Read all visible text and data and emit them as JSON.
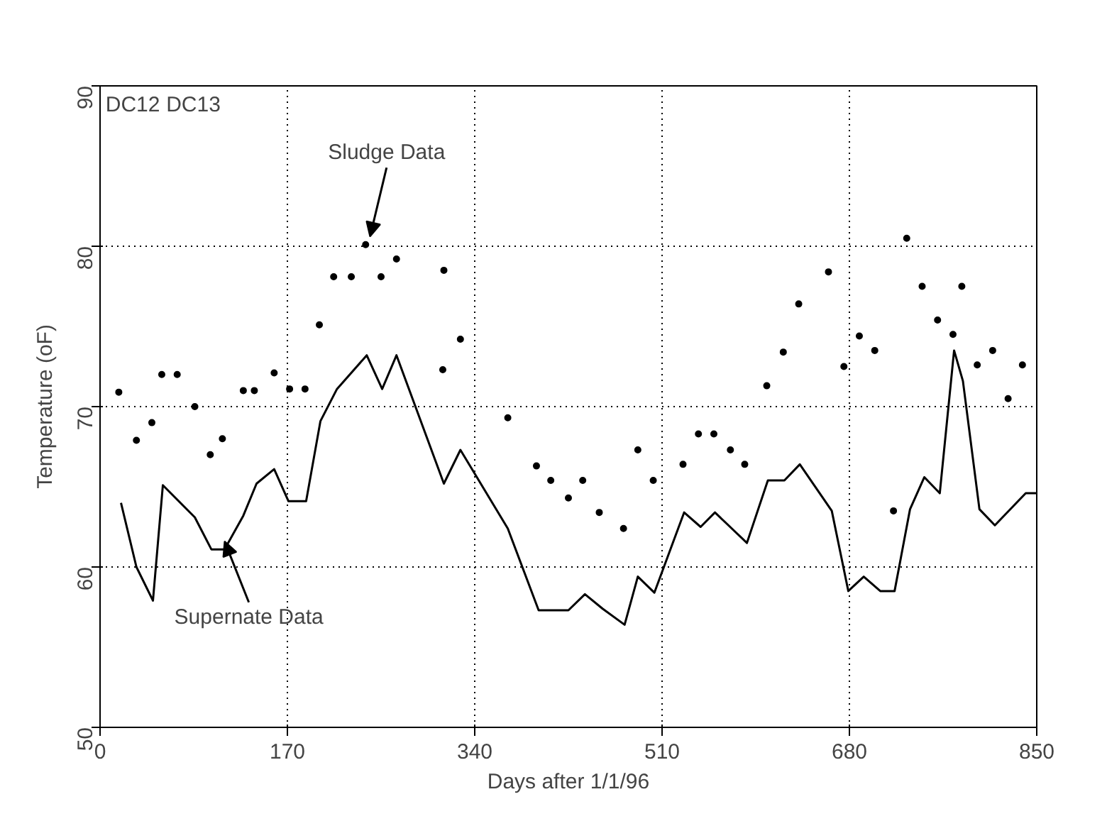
{
  "chart_data": {
    "type": "line",
    "xlabel": "Days after 1/1/96",
    "ylabel": "Temperature (oF)",
    "xlim": [
      0,
      850
    ],
    "ylim": [
      50,
      90
    ],
    "xticks": [
      0,
      170,
      340,
      510,
      680,
      850
    ],
    "yticks": [
      50,
      60,
      70,
      80,
      90
    ],
    "grid": true,
    "series": [
      {
        "type": "scatter",
        "marker": "circle",
        "color": "#000000",
        "x": [
          17,
          33,
          47,
          56,
          70,
          86,
          100,
          111,
          130,
          140,
          158,
          172,
          186,
          199,
          212,
          228,
          241,
          255,
          269,
          311,
          312,
          327,
          370,
          396,
          409,
          425,
          438,
          453,
          475,
          488,
          502,
          529,
          543,
          557,
          572,
          585,
          605,
          620,
          634,
          661,
          675,
          689,
          703,
          720,
          732,
          746,
          760,
          774,
          782,
          796,
          810,
          824,
          837
        ],
        "values": [
          70.9,
          67.9,
          69.0,
          72.0,
          72.0,
          70.0,
          67.0,
          68.0,
          71.0,
          71.0,
          72.1,
          71.1,
          71.1,
          75.1,
          78.1,
          78.1,
          80.1,
          78.1,
          79.2,
          72.3,
          78.5,
          74.2,
          69.3,
          66.3,
          65.4,
          64.3,
          65.4,
          63.4,
          62.4,
          67.3,
          65.4,
          66.4,
          68.3,
          68.3,
          67.3,
          66.4,
          71.3,
          73.4,
          76.4,
          78.4,
          72.5,
          74.4,
          73.5,
          63.5,
          80.5,
          77.5,
          75.4,
          74.5,
          77.5,
          72.6,
          73.5,
          70.5,
          72.6
        ]
      },
      {
        "marker": "none",
        "line_style": "solid",
        "color": "#000000",
        "x": [
          19,
          33,
          48,
          57,
          86,
          101,
          113,
          130,
          142,
          158,
          171,
          187,
          200,
          215,
          242,
          256,
          269,
          312,
          327,
          370,
          398,
          425,
          440,
          456,
          476,
          488,
          503,
          530,
          545,
          558,
          587,
          606,
          621,
          635,
          664,
          679,
          693,
          708,
          721,
          735,
          748,
          762,
          775,
          783,
          798,
          812,
          840,
          850
        ],
        "values": [
          64.0,
          60.0,
          57.9,
          65.1,
          63.1,
          61.1,
          61.1,
          63.2,
          65.2,
          66.1,
          64.1,
          64.1,
          69.1,
          71.1,
          73.2,
          71.1,
          73.2,
          65.2,
          67.3,
          62.4,
          57.3,
          57.3,
          58.3,
          57.4,
          56.4,
          59.4,
          58.4,
          63.4,
          62.5,
          63.4,
          61.5,
          65.4,
          65.4,
          66.4,
          63.5,
          58.5,
          59.4,
          58.5,
          58.5,
          63.6,
          65.6,
          64.6,
          73.5,
          71.6,
          63.6,
          62.6,
          64.6,
          64.6
        ]
      }
    ],
    "annotations": [
      "DC12",
      "DC13",
      {
        "text": "Sludge Data",
        "x": 245,
        "y": 80.6
      },
      {
        "text": "Supernate Data",
        "x": 113,
        "y": 61.6
      }
    ]
  }
}
